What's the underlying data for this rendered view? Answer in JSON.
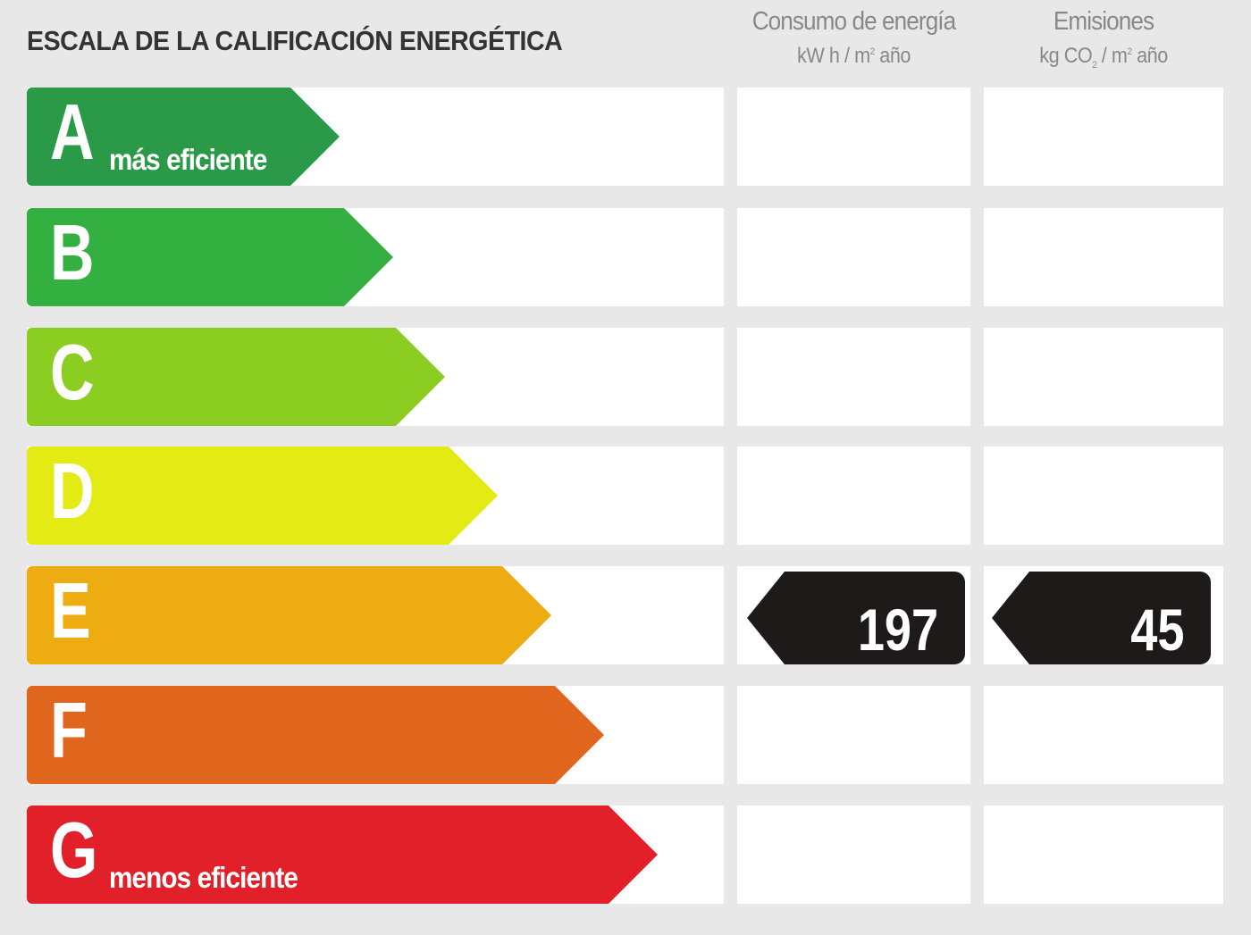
{
  "title": "ESCALA DE LA CALIFICACIÓN ENERGÉTICA",
  "columns": {
    "energy": {
      "label": "Consumo de energía",
      "unit_pre": "kW h / m",
      "unit_sup": "2",
      "unit_post": " año"
    },
    "emissions": {
      "label": "Emisiones",
      "unit_pre": "kg CO",
      "unit_sub": "2",
      "unit_mid": " / m",
      "unit_sup": "2",
      "unit_post": " año"
    }
  },
  "ratings": [
    {
      "letter": "A",
      "sub": "más eficiente",
      "color": "#2a9a48"
    },
    {
      "letter": "B",
      "sub": "",
      "color": "#33b040"
    },
    {
      "letter": "C",
      "sub": "",
      "color": "#8ccd22"
    },
    {
      "letter": "D",
      "sub": "",
      "color": "#e4ea14"
    },
    {
      "letter": "E",
      "sub": "",
      "color": "#edac12"
    },
    {
      "letter": "F",
      "sub": "",
      "color": "#df661c"
    },
    {
      "letter": "G",
      "sub": "menos eficiente",
      "color": "#e1202a"
    }
  ],
  "result": {
    "rating": "E",
    "energy_value": "197",
    "emissions_value": "45",
    "badge_color": "#1e1a1a"
  }
}
